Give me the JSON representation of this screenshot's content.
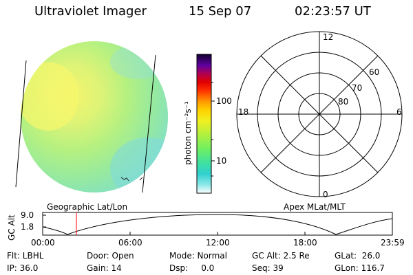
{
  "header": {
    "instrument": "Ultraviolet Imager",
    "date": "15 Sep 07",
    "time": "02:23:57 UT"
  },
  "colorbar": {
    "unit_label": "photon cm⁻²s⁻¹",
    "ticks": [
      "100",
      "10"
    ],
    "scale": "log",
    "colors": [
      "#ffffff",
      "#7fe8e8",
      "#30d0d0",
      "#40e0a0",
      "#60f070",
      "#a0f040",
      "#e0f030",
      "#f0f020",
      "#ffd000",
      "#ff9900",
      "#ff5000",
      "#ff0000",
      "#c00030",
      "#a00080",
      "#5000a0",
      "#100040"
    ]
  },
  "polar_plot": {
    "labels": {
      "top": "12",
      "bottom": "0",
      "left": "18",
      "right": "6"
    },
    "ring_labels": [
      "60",
      "70",
      "80"
    ]
  },
  "map_labels": {
    "left": "Geographic Lat/Lon",
    "right": "Apex MLat/MLT"
  },
  "altitude_plot": {
    "ylabel": "GC Alt",
    "y_ticks": [
      "9.0",
      "1.8"
    ],
    "x_ticks": [
      "00:00",
      "06:00",
      "12:00",
      "18:00",
      "23:59"
    ],
    "marker_time": "02:23"
  },
  "info": {
    "row1": {
      "flt": "Flt: LBHL",
      "door": "Door: Open",
      "mode": "Mode: Normal",
      "gcalt": "GC Alt: 2.5 Re",
      "glat": "GLat:  26.0"
    },
    "row2": {
      "ip": "IP: 36.0",
      "gain": "Gain: 14",
      "dsp": "Dsp:     0.0",
      "seq": "Seq: 39",
      "glon": "GLon: 116.7"
    }
  }
}
